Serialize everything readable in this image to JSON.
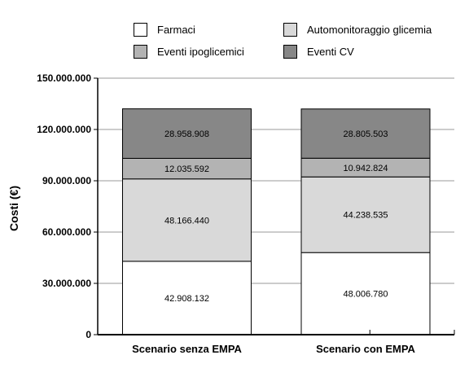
{
  "legend": [
    {
      "label": "Farmaci",
      "color": "#ffffff"
    },
    {
      "label": "Automonitoraggio glicemia",
      "color": "#d9d9d9"
    },
    {
      "label": "Eventi ipoglicemici",
      "color": "#b3b3b3"
    },
    {
      "label": "Eventi CV",
      "color": "#878787"
    }
  ],
  "chart_data": {
    "type": "bar",
    "stacked": true,
    "categories": [
      "Scenario senza EMPA",
      "Scenario con EMPA"
    ],
    "series": [
      {
        "name": "Farmaci",
        "color": "#ffffff",
        "values": [
          42908132,
          48006780
        ],
        "labels": [
          "42.908.132",
          "48.006.780"
        ]
      },
      {
        "name": "Automonitoraggio glicemia",
        "color": "#d9d9d9",
        "values": [
          48166440,
          44238535
        ],
        "labels": [
          "48.166.440",
          "44.238.535"
        ]
      },
      {
        "name": "Eventi ipoglicemici",
        "color": "#b3b3b3",
        "values": [
          12035592,
          10942824
        ],
        "labels": [
          "12.035.592",
          "10.942.824"
        ]
      },
      {
        "name": "Eventi CV",
        "color": "#878787",
        "values": [
          28958908,
          28805503
        ],
        "labels": [
          "28.958.908",
          "28.805.503"
        ]
      }
    ],
    "ylabel": "Costi (€)",
    "xlabel": "",
    "ylim": [
      0,
      150000000
    ],
    "yticks": [
      0,
      30000000,
      60000000,
      90000000,
      120000000,
      150000000
    ],
    "ytick_labels": [
      "0",
      "30.000.000",
      "60.000.000",
      "90.000.000",
      "120.000.000",
      "150.000.000"
    ],
    "grid": true,
    "legend_position": "top"
  }
}
